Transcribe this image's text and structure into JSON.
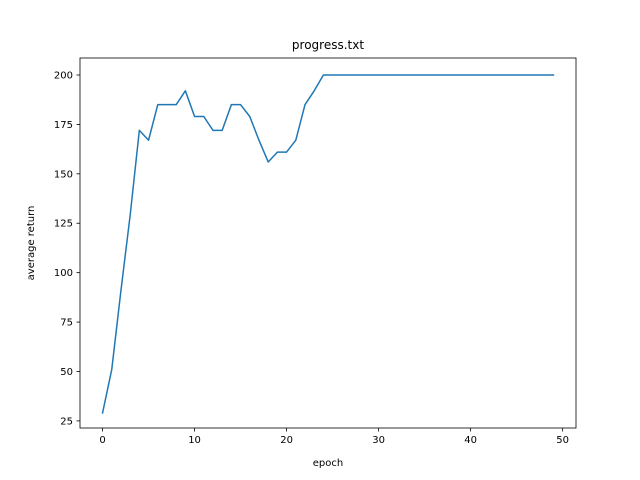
{
  "chart_data": {
    "type": "line",
    "title": "progress.txt",
    "xlabel": "epoch",
    "ylabel": "average return",
    "xlim": [
      -2.45,
      51.45
    ],
    "ylim": [
      21.4,
      208.6
    ],
    "xticks": [
      0,
      10,
      20,
      30,
      40,
      50
    ],
    "yticks": [
      25,
      50,
      75,
      100,
      125,
      150,
      175,
      200
    ],
    "grid": false,
    "legend": "none",
    "series": [
      {
        "color": "#1f77b4",
        "x": [
          0,
          1,
          2,
          3,
          4,
          5,
          6,
          7,
          8,
          9,
          10,
          11,
          12,
          13,
          14,
          15,
          16,
          17,
          18,
          19,
          20,
          21,
          22,
          23,
          24,
          25,
          26,
          27,
          28,
          29,
          30,
          31,
          32,
          33,
          34,
          35,
          36,
          37,
          38,
          39,
          40,
          41,
          42,
          43,
          44,
          45,
          46,
          47,
          48,
          49
        ],
        "y": [
          29,
          51,
          91,
          129,
          172,
          167,
          185,
          185,
          185,
          192,
          179,
          179,
          172,
          172,
          185,
          185,
          179,
          167,
          156,
          161,
          161,
          167,
          185,
          192,
          200,
          200,
          200,
          200,
          200,
          200,
          200,
          200,
          200,
          200,
          200,
          200,
          200,
          200,
          200,
          200,
          200,
          200,
          200,
          200,
          200,
          200,
          200,
          200,
          200,
          200
        ]
      }
    ]
  }
}
